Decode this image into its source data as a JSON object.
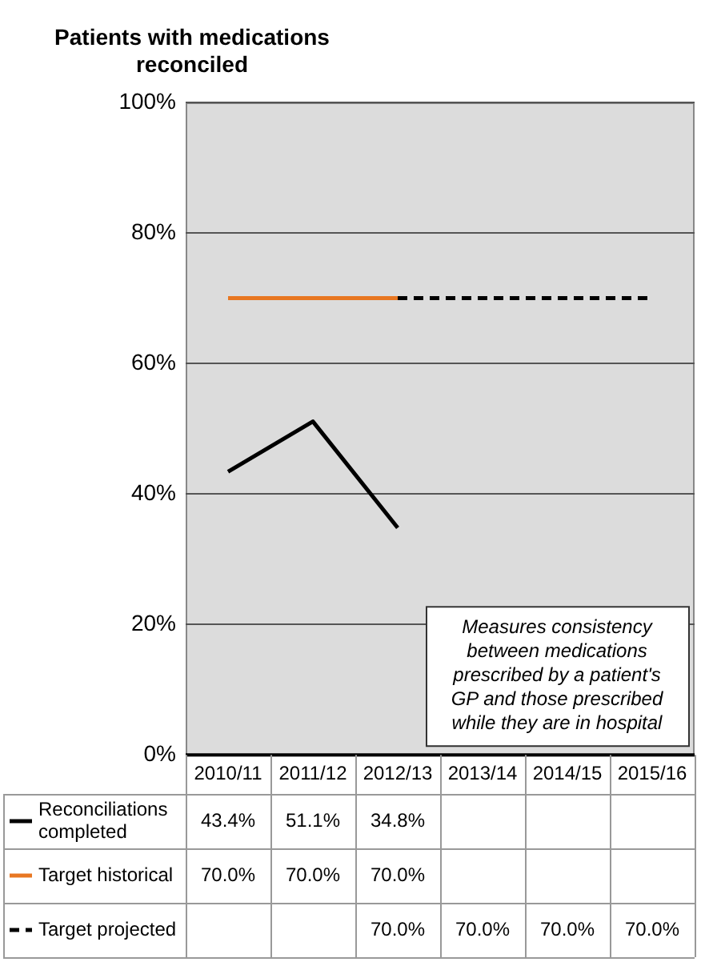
{
  "chart_data": {
    "type": "line",
    "ylabel": "Patients with medications reconciled",
    "categories": [
      "2010/11",
      "2011/12",
      "2012/13",
      "2013/14",
      "2014/15",
      "2015/16"
    ],
    "series": [
      {
        "name": "Reconciliations completed",
        "color": "#000000",
        "values": [
          43.4,
          51.1,
          34.8,
          null,
          null,
          null
        ],
        "value_labels": [
          "43.4%",
          "51.1%",
          "34.8%",
          null,
          null,
          null
        ]
      },
      {
        "name": "Target historical",
        "color": "#e87722",
        "values": [
          70,
          70,
          70,
          null,
          null,
          null
        ],
        "value_labels": [
          "70.0%",
          "70.0%",
          "70.0%",
          null,
          null,
          null
        ]
      },
      {
        "name": "Target projected",
        "color": "#000000",
        "line_style": "dashed",
        "values": [
          null,
          null,
          70,
          70,
          70,
          70
        ],
        "value_labels": [
          null,
          null,
          "70.0%",
          "70.0%",
          "70.0%",
          "70.0%"
        ]
      }
    ],
    "ylim": [
      0,
      100
    ],
    "yticks": [
      {
        "value": 0,
        "label": "0%"
      },
      {
        "value": 20,
        "label": "20%"
      },
      {
        "value": 40,
        "label": "40%"
      },
      {
        "value": 60,
        "label": "60%"
      },
      {
        "value": 80,
        "label": "80%"
      },
      {
        "value": 100,
        "label": "100%"
      }
    ],
    "grid": "y",
    "legend": "bottom",
    "marker": "none",
    "annotations": [
      "Measures consistency between medications prescribed by a patient's GP and those prescribed while they are in hospital"
    ]
  }
}
